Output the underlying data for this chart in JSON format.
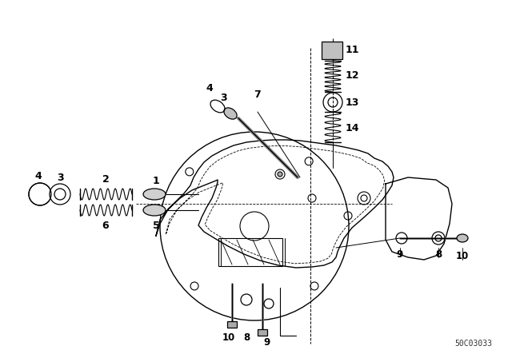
{
  "background_color": "#ffffff",
  "part_number": "50C03033",
  "text_color": "#000000",
  "line_color": "#000000",
  "fig_width": 6.4,
  "fig_height": 4.48,
  "dpi": 100
}
